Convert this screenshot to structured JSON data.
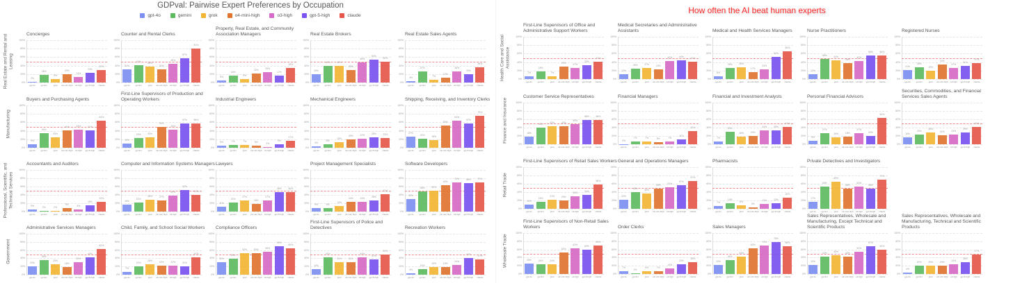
{
  "left_title": "GDPval: Pairwise Expert Preferences by Occupation",
  "right_title": "How often the AI beat human experts",
  "legend": [
    {
      "label": "gpt-4o",
      "color": "#7d8ff2"
    },
    {
      "label": "gemini",
      "color": "#5dbb5f"
    },
    {
      "label": "grok",
      "color": "#f2b533"
    },
    {
      "label": "o4-mini-high",
      "color": "#df7430"
    },
    {
      "label": "o3-high",
      "color": "#d66ac6"
    },
    {
      "label": "gpt-5-high",
      "color": "#7a52f0"
    },
    {
      "label": "claude",
      "color": "#e4574a"
    }
  ],
  "chart_data": {
    "type": "bar",
    "categories": [
      "gpt-4o",
      "gemini",
      "grok",
      "o4-mini-high",
      "o3-high",
      "gpt-5-high",
      "claude"
    ],
    "ylim": [
      0,
      100
    ],
    "yticks": [
      "0%",
      "20%",
      "40%",
      "60%",
      "80%",
      "100%"
    ],
    "reference_line": 50,
    "unit": "%",
    "sections": [
      {
        "side": "left",
        "rows": [
          {
            "sector": "Real Estate and Rental and Leasing",
            "panels": [
              {
                "title": "Concierges",
                "values": [
                  2,
                  18,
                  9,
                  20,
                  13,
                  23,
                  29
                ]
              },
              {
                "title": "Counter and Rental Clerks",
                "values": [
                  31,
                  41,
                  38,
                  31,
                  45,
                  57,
                  81
                ]
              },
              {
                "title": "Property, Real Estate, and Community Association Managers",
                "values": [
                  5,
                  16,
                  9,
                  22,
                  25,
                  17,
                  34
                ]
              },
              {
                "title": "Real Estate Brokers",
                "values": [
                  20,
                  40,
                  40,
                  30,
                  48,
                  54,
                  50
                ]
              },
              {
                "title": "Real Estate Sales Agents",
                "values": [
                  4,
                  27,
                  7,
                  12,
                  26,
                  20,
                  36
                ]
              }
            ]
          },
          {
            "sector": "Manufacturing",
            "panels": [
              {
                "title": "Buyers and Purchasing Agents",
                "values": [
                  9,
                  34,
                  25,
                  41,
                  43,
                  41,
                  64
                ]
              },
              {
                "title": "First-Line Supervisors of Production and Operating Workers",
                "values": [
                  10,
                  23,
                  25,
                  50,
                  43,
                  57,
                  58
                ]
              },
              {
                "title": "Industrial Engineers",
                "values": [
                  5,
                  7,
                  7,
                  5,
                  2,
                  9,
                  17
                ]
              },
              {
                "title": "Mechanical Engineers",
                "values": [
                  4,
                  8,
                  13,
                  20,
                  22,
                  25,
                  23
                ]
              },
              {
                "title": "Shipping, Receiving, and Inventory Clerks",
                "values": [
                  27,
                  22,
                  18,
                  53,
                  64,
                  57,
                  75
                ]
              }
            ]
          },
          {
            "sector": "Professional, Scientific, and Technical Services",
            "panels": [
              {
                "title": "Accountants and Auditors",
                "values": [
                  5,
                  2,
                  2,
                  9,
                  5,
                  15,
                  24
                ]
              },
              {
                "title": "Computer and Information Systems Managers",
                "values": [
                  16,
                  21,
                  28,
                  27,
                  39,
                  52,
                  40
                ]
              },
              {
                "title": "Lawyers",
                "values": [
                  11,
                  22,
                  27,
                  18,
                  27,
                  46,
                  46
                ]
              },
              {
                "title": "Project Management Specialists",
                "values": [
                  9,
                  9,
                  14,
                  24,
                  24,
                  26,
                  42
                ]
              },
              {
                "title": "Software Developers",
                "values": [
                  30,
                  48,
                  50,
                  63,
                  70,
                  68,
                  70
                ]
              }
            ]
          },
          {
            "sector": "Government",
            "panels": [
              {
                "title": "Administrative Services Managers",
                "values": [
                  20,
                  36,
                  25,
                  18,
                  30,
                  43,
                  62
                ]
              },
              {
                "title": "Child, Family, and School Social Workers",
                "values": [
                  7,
                  21,
                  26,
                  22,
                  22,
                  21,
                  42
                ]
              },
              {
                "title": "Compliance Officers",
                "values": [
                  31,
                  39,
                  52,
                  53,
                  56,
                  69,
                  65
                ]
              },
              {
                "title": "First-Line Supervisors of Police and Detectives",
                "values": [
                  14,
                  42,
                  31,
                  31,
                  43,
                  37,
                  50
                ]
              },
              {
                "title": "Recreation Workers",
                "values": [
                  4,
                  14,
                  19,
                  19,
                  24,
                  40,
                  37
                ]
              }
            ]
          }
        ]
      },
      {
        "side": "right",
        "rows": [
          {
            "sector": "Health Care and Social Assistance",
            "panels": [
              {
                "title": "First-Line Supervisors of Office and Administrative Support Workers",
                "values": [
                  7,
                  18,
                  7,
                  29,
                  27,
                  33,
                  41
                ]
              },
              {
                "title": "Medical Secretaries and Administrative Assistants",
                "values": [
                  12,
                  25,
                  27,
                  23,
                  42,
                  44,
                  41
                ]
              },
              {
                "title": "Medical and Health Services Managers",
                "values": [
                  6,
                  26,
                  28,
                  17,
                  23,
                  52,
                  65
                ]
              },
              {
                "title": "Nurse Practitioners",
                "values": [
                  12,
                  48,
                  44,
                  38,
                  42,
                  56,
                  56
                ]
              },
              {
                "title": "Registered Nurses",
                "values": [
                  21,
                  28,
                  19,
                  34,
                  27,
                  31,
                  37
                ]
              }
            ]
          },
          {
            "sector": "Finance and Insurance",
            "panels": [
              {
                "title": "Customer Service Representatives",
                "values": [
                  18,
                  40,
                  43,
                  43,
                  49,
                  58,
                  58
                ]
              },
              {
                "title": "Financial Managers",
                "values": [
                  0,
                  7,
                  7,
                  5,
                  7,
                  11,
                  32
                ]
              },
              {
                "title": "Financial and Investment Analysts",
                "values": [
                  7,
                  30,
                  18,
                  20,
                  34,
                  33,
                  41
                ]
              },
              {
                "title": "Personal Financial Advisors",
                "values": [
                  9,
                  27,
                  16,
                  18,
                  27,
                  20,
                  64
                ]
              },
              {
                "title": "Securities, Commodities, and Financial Services Sales Agents",
                "values": [
                  16,
                  23,
                  28,
                  21,
                  23,
                  29,
                  42
                ]
              }
            ]
          },
          {
            "sector": "Retail Trade",
            "panels": [
              {
                "title": "First-Line Supervisors of Retail Sales Workers",
                "values": [
                  10,
                  16,
                  21,
                  20,
                  30,
                  34,
                  58
                ]
              },
              {
                "title": "General and Operations Managers",
                "values": [
                  22,
                  40,
                  36,
                  49,
                  51,
                  57,
                  67
                ]
              },
              {
                "title": "Pharmacists",
                "values": [
                  7,
                  13,
                  8,
                  3,
                  11,
                  13,
                  26
                ]
              },
              {
                "title": "Private Detectives and Investigators",
                "values": [
                  17,
                  53,
                  65,
                  48,
                  54,
                  48,
                  70
                ]
              }
            ]
          },
          {
            "sector": "Wholesale Trade",
            "panels": [
              {
                "title": "First-Line Supervisors of Non-Retail Sales Workers",
                "values": [
                  25,
                  24,
                  24,
                  52,
                  62,
                  60,
                  69
                ]
              },
              {
                "title": "Order Clerks",
                "values": [
                  7,
                  2,
                  6,
                  7,
                  13,
                  23,
                  28
                ]
              },
              {
                "title": "Sales Managers",
                "values": [
                  22,
                  34,
                  43,
                  62,
                  70,
                  78,
                  68
                ]
              },
              {
                "title": "Sales Representatives, Wholesale and Manufacturing, Except Technical and Scientific Products",
                "values": [
                  22,
                  42,
                  45,
                  43,
                  54,
                  67,
                  60
                ]
              },
              {
                "title": "Sales Representatives, Wholesale and Manufacturing, Technical and Scientific Products",
                "values": [
                  4,
                  20,
                  20,
                  20,
                  24,
                  28,
                  47
                ]
              }
            ]
          }
        ]
      }
    ]
  }
}
